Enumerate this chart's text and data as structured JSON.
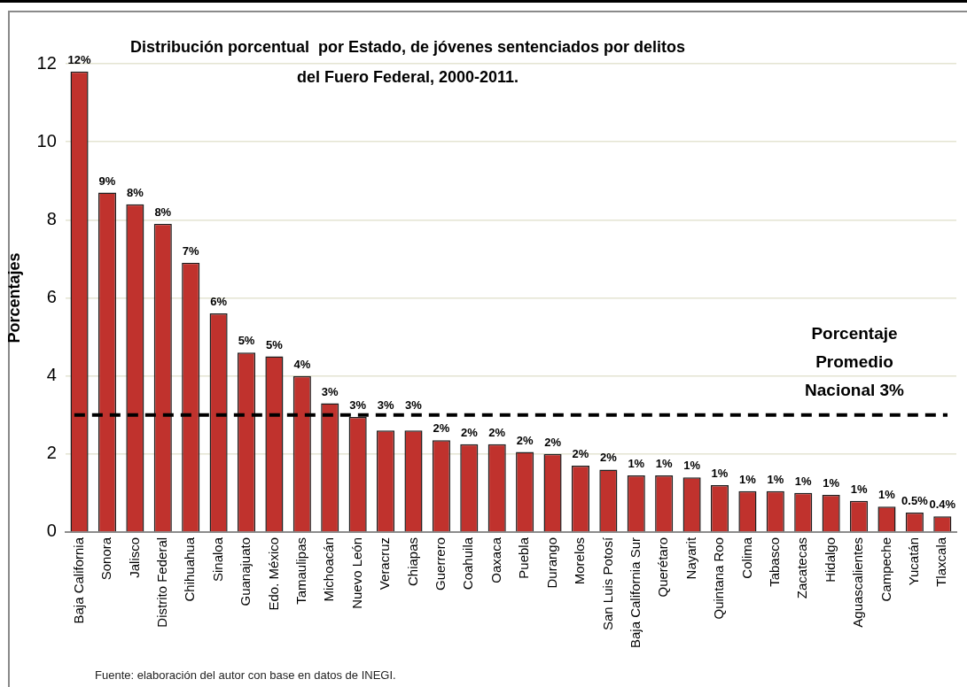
{
  "chart_data": {
    "type": "bar",
    "title": "Distribución porcentual  por Estado, de jóvenes sentenciados por delitos del Fuero Federal, 2000-2011.",
    "ylabel": "Porcentajes",
    "categories": [
      "Baja California",
      "Sonora",
      "Jalisco",
      "Distrito Federal",
      "Chihuahua",
      "Sinaloa",
      "Guanajuato",
      "Edo. México",
      "Tamaulipas",
      "Michoacán",
      "Nuevo León",
      "Veracruz",
      "Chiapas",
      "Guerrero",
      "Coahuila",
      "Oaxaca",
      "Puebla",
      "Durango",
      "Morelos",
      "San Luis Potosí",
      "Baja California Sur",
      "Querétaro",
      "Nayarit",
      "Quintana Roo",
      "Colima",
      "Tabasco",
      "Zacatecas",
      "Hidalgo",
      "Aguascalientes",
      "Campeche",
      "Yucatán",
      "Tlaxcala"
    ],
    "values": [
      11.8,
      8.7,
      8.4,
      7.9,
      6.9,
      5.6,
      4.6,
      4.5,
      4.0,
      3.3,
      2.95,
      2.6,
      2.6,
      2.35,
      2.25,
      2.25,
      2.05,
      2.0,
      1.7,
      1.6,
      1.45,
      1.45,
      1.4,
      1.2,
      1.05,
      1.05,
      1.0,
      0.95,
      0.8,
      0.65,
      0.5,
      0.4
    ],
    "value_labels": [
      "12%",
      "9%",
      "8%",
      "8%",
      "7%",
      "6%",
      "5%",
      "5%",
      "4%",
      "3%",
      "3%",
      "3%",
      "3%",
      "2%",
      "2%",
      "2%",
      "2%",
      "2%",
      "2%",
      "2%",
      "1%",
      "1%",
      "1%",
      "1%",
      "1%",
      "1%",
      "1%",
      "1%",
      "1%",
      "1%",
      "0.5%",
      "0.4%"
    ],
    "color": "#c0322d",
    "ylim": [
      0,
      12
    ],
    "yticks": [
      0,
      2,
      4,
      6,
      8,
      10,
      12
    ],
    "grid": "y",
    "ref_lines": [
      {
        "axis": "y",
        "value": 3,
        "label": "Porcentaje Promedio Nacional 3%",
        "line_style": "dashed",
        "color": "#000000"
      }
    ],
    "annotations": [
      "Fuente: elaboración del autor con base en datos de INEGI."
    ]
  }
}
